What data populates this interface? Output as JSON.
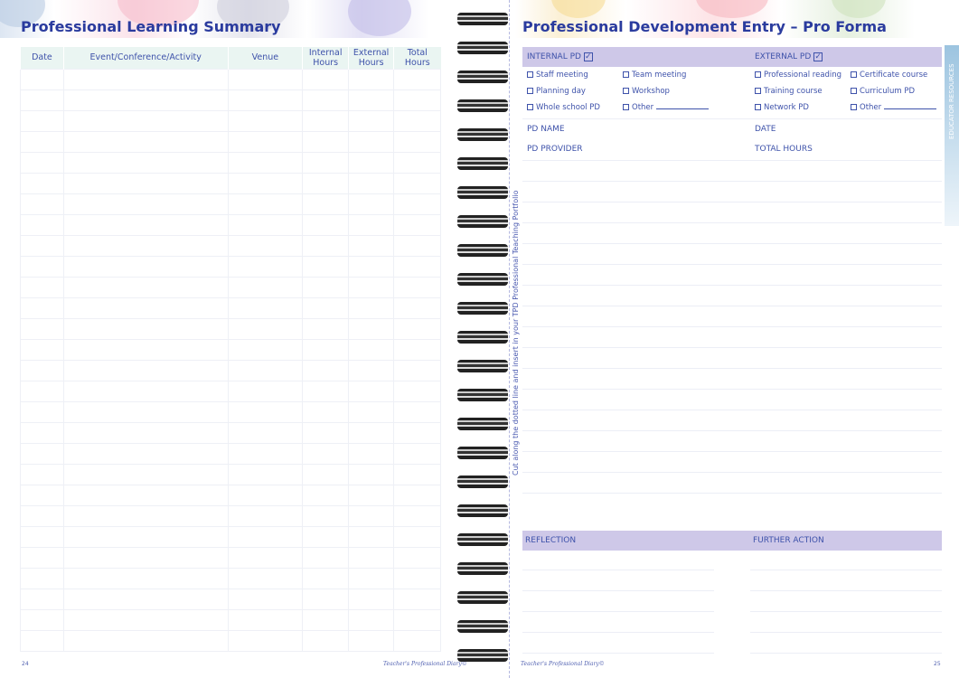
{
  "left_page": {
    "title": "Professional Learning Summary",
    "columns": [
      "Date",
      "Event/Conference/Activity",
      "Venue",
      "Internal Hours",
      "External Hours",
      "Total Hours"
    ],
    "page_number": "24",
    "footer": "Teacher's Professional Diary©"
  },
  "right_page": {
    "title": "Professional Development Entry – Pro Forma",
    "internal": {
      "label": "INTERNAL PD",
      "options": [
        "Staff meeting",
        "Team meeting",
        "Planning day",
        "Workshop",
        "Whole school PD",
        "Other"
      ]
    },
    "external": {
      "label": "EXTERNAL PD",
      "options": [
        "Professional reading",
        "Certificate course",
        "Training course",
        "Curriculum PD",
        "Network PD",
        "Other"
      ]
    },
    "fields": {
      "pd_name": "PD NAME",
      "date": "DATE",
      "pd_provider": "PD PROVIDER",
      "total_hours": "TOTAL HOURS"
    },
    "reflection": "REFLECTION",
    "further_action": "FURTHER ACTION",
    "side_tab": "EDUCATOR RESOURCES",
    "cut_note": "Cut along the dotted line and insert in your TPD Professional Teaching Portfolio",
    "page_number": "25",
    "footer": "Teacher's Professional Diary©"
  },
  "colors": {
    "title": "#2a3b9e",
    "header_fill": "#eaf5f2",
    "bar_fill": "#cec8e8",
    "tab": "#9cc4e0"
  }
}
